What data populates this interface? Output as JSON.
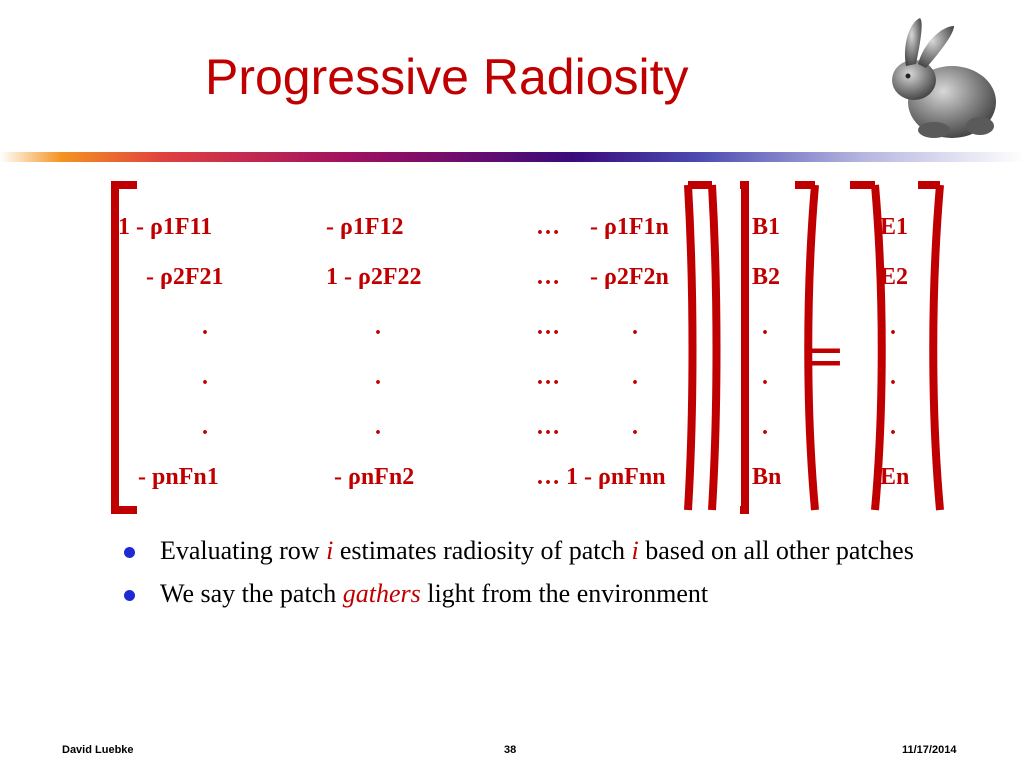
{
  "title": "Progressive Radiosity",
  "colors": {
    "accent": "#c00000",
    "bullet": "#1e2ad4"
  },
  "matrix": {
    "rows": [
      [
        "1 - ρ1F11",
        "- ρ1F12",
        "…",
        "- ρ1F1n",
        "B1",
        "E1"
      ],
      [
        "- ρ2F21",
        "1 - ρ2F22",
        "…",
        "- ρ2F2n",
        "B2",
        "E2"
      ],
      [
        ".",
        ".",
        "…",
        ".",
        ".",
        "."
      ],
      [
        ".",
        ".",
        "…",
        ".",
        ".",
        "."
      ],
      [
        ".",
        ".",
        "…",
        ".",
        ".",
        "."
      ],
      [
        "- pnFn1",
        "- ρnFn2",
        "… 1 - ρnFnn",
        "",
        "Bn",
        "En"
      ]
    ],
    "equals": "="
  },
  "bullets": [
    {
      "before": "Evaluating row ",
      "em1": "i",
      "middle": " estimates radiosity of patch ",
      "em2": "i",
      "after": " based on all other patches"
    },
    {
      "before": "We say the patch ",
      "em1": "gathers",
      "after": " light from the environment"
    }
  ],
  "footer": {
    "author": "David Luebke",
    "page": "38",
    "date": "11/17/2014"
  },
  "icons": {
    "logo": "bunny-icon",
    "bullet": "bullet-dot-icon"
  }
}
